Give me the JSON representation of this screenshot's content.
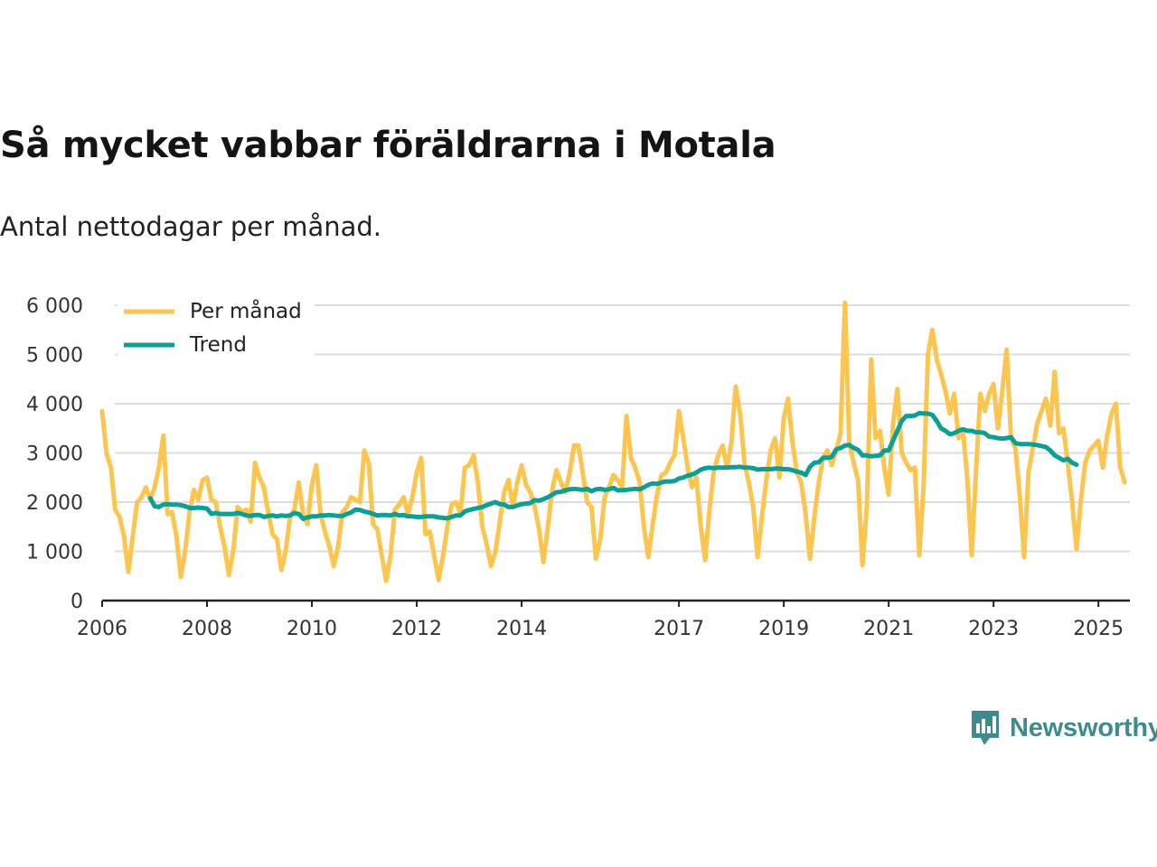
{
  "header": {
    "title": "Så mycket vabbar föräldrarna i Motala",
    "subtitle": "Antal nettodagar per månad."
  },
  "brand": {
    "name": "Newsworthy",
    "color": "#3e8a8f"
  },
  "colors": {
    "monthly": "#fbc54f",
    "trend": "#0f9e93",
    "grid": "#dddddd",
    "axis": "#222222"
  },
  "chart_data": {
    "type": "line",
    "title": "Så mycket vabbar föräldrarna i Motala",
    "subtitle": "Antal nettodagar per månad.",
    "xlabel": "",
    "ylabel": "",
    "ylim": [
      0,
      6000
    ],
    "yticks": [
      0,
      1000,
      2000,
      3000,
      4000,
      5000,
      6000
    ],
    "ytick_labels": [
      "0",
      "1 000",
      "2 000",
      "3 000",
      "4 000",
      "5 000",
      "6 000"
    ],
    "xlim": [
      2006,
      2025.6
    ],
    "xticks": [
      2006,
      2008,
      2010,
      2012,
      2014,
      2017,
      2019,
      2021,
      2023,
      2025
    ],
    "xtick_labels": [
      "2006",
      "2008",
      "2010",
      "2012",
      "2014",
      "2017",
      "2019",
      "2021",
      "2023",
      "2025"
    ],
    "grid": true,
    "legend": {
      "position": "top-left",
      "entries": [
        "Per månad",
        "Trend"
      ]
    },
    "series": [
      {
        "name": "Per månad",
        "color": "#fbc54f",
        "x_start": 2006.0,
        "step": 0.08333,
        "values": [
          3850,
          3000,
          2700,
          1850,
          1700,
          1300,
          580,
          1300,
          2000,
          2100,
          2300,
          2050,
          2300,
          2700,
          3350,
          1750,
          1800,
          1300,
          480,
          1000,
          1800,
          2250,
          2050,
          2450,
          2500,
          2050,
          2000,
          1500,
          1100,
          520,
          1000,
          1900,
          1800,
          1850,
          1600,
          2800,
          2500,
          2300,
          1800,
          1350,
          1250,
          620,
          1000,
          1700,
          1850,
          2400,
          1750,
          1550,
          2350,
          2750,
          1750,
          1400,
          1100,
          700,
          1100,
          1800,
          1900,
          2100,
          2050,
          2000,
          3050,
          2800,
          1550,
          1450,
          900,
          400,
          900,
          1850,
          1950,
          2100,
          1750,
          2100,
          2600,
          2900,
          1350,
          1400,
          900,
          420,
          900,
          1500,
          1950,
          2000,
          1750,
          2700,
          2750,
          2950,
          2400,
          1500,
          1150,
          700,
          1000,
          1600,
          2200,
          2450,
          1900,
          2400,
          2750,
          2350,
          2200,
          1900,
          1450,
          780,
          1500,
          2250,
          2650,
          2400,
          2200,
          2600,
          3150,
          3150,
          2600,
          2000,
          1900,
          850,
          1250,
          2100,
          2300,
          2550,
          2450,
          2300,
          3750,
          2900,
          2700,
          2400,
          1500,
          880,
          1550,
          2150,
          2550,
          2600,
          2800,
          2950,
          3850,
          3300,
          2700,
          2300,
          2500,
          1500,
          820,
          1850,
          2650,
          2950,
          3150,
          2700,
          3200,
          4350,
          3800,
          2800,
          2400,
          1900,
          880,
          1700,
          2450,
          3050,
          3300,
          2500,
          3700,
          4100,
          3200,
          2600,
          2400,
          1750,
          850,
          1700,
          2400,
          2900,
          3050,
          2750,
          3050,
          3400,
          6050,
          3200,
          2800,
          2450,
          720,
          1900,
          4900,
          3300,
          3450,
          2700,
          2150,
          3600,
          4300,
          3000,
          2800,
          2650,
          2700,
          920,
          2350,
          5000,
          5500,
          4900,
          4600,
          4250,
          3800,
          4200,
          3300,
          3450,
          2500,
          920,
          2650,
          4200,
          3850,
          4200,
          4400,
          3500,
          4250,
          5100,
          3300,
          3100,
          2150,
          880,
          2600,
          3100,
          3600,
          3850,
          4100,
          3550,
          4650,
          3400,
          3500,
          2800,
          2000,
          1050,
          2050,
          2800,
          3050,
          3150,
          3250,
          2700,
          3350,
          3800,
          4000,
          2700,
          2400
        ]
      },
      {
        "name": "Trend",
        "color": "#0f9e93",
        "x_start": 2006.9167,
        "step": 0.08333,
        "values": [
          2080,
          1920,
          1900,
          1950,
          1960,
          1950,
          1950,
          1940,
          1920,
          1880,
          1880,
          1890,
          1880,
          1870,
          1760,
          1780,
          1760,
          1760,
          1760,
          1760,
          1780,
          1760,
          1730,
          1720,
          1740,
          1740,
          1700,
          1720,
          1730,
          1710,
          1730,
          1720,
          1730,
          1780,
          1760,
          1660,
          1690,
          1710,
          1710,
          1730,
          1730,
          1740,
          1730,
          1720,
          1720,
          1760,
          1790,
          1850,
          1840,
          1810,
          1790,
          1760,
          1730,
          1740,
          1740,
          1730,
          1760,
          1730,
          1740,
          1710,
          1710,
          1700,
          1700,
          1710,
          1710,
          1710,
          1690,
          1680,
          1670,
          1700,
          1730,
          1730,
          1810,
          1840,
          1860,
          1880,
          1900,
          1940,
          1970,
          2000,
          1960,
          1950,
          1900,
          1900,
          1930,
          1960,
          1970,
          1980,
          2040,
          2030,
          2060,
          2100,
          2150,
          2200,
          2210,
          2240,
          2260,
          2270,
          2260,
          2250,
          2270,
          2220,
          2260,
          2270,
          2250,
          2260,
          2290,
          2240,
          2240,
          2250,
          2260,
          2270,
          2260,
          2300,
          2350,
          2380,
          2370,
          2400,
          2420,
          2420,
          2430,
          2480,
          2500,
          2540,
          2560,
          2600,
          2660,
          2690,
          2700,
          2690,
          2700,
          2700,
          2700,
          2710,
          2710,
          2720,
          2700,
          2700,
          2690,
          2660,
          2670,
          2670,
          2670,
          2680,
          2680,
          2670,
          2670,
          2650,
          2620,
          2600,
          2550,
          2720,
          2800,
          2810,
          2900,
          2900,
          2920,
          3070,
          3100,
          3150,
          3160,
          3100,
          3060,
          2950,
          2950,
          2930,
          2940,
          2950,
          3050,
          3050,
          3250,
          3450,
          3650,
          3750,
          3750,
          3760,
          3810,
          3800,
          3800,
          3770,
          3650,
          3500,
          3450,
          3380,
          3400,
          3450,
          3480,
          3450,
          3450,
          3420,
          3420,
          3400,
          3330,
          3320,
          3300,
          3290,
          3300,
          3320,
          3200,
          3180,
          3180,
          3180,
          3170,
          3160,
          3140,
          3120,
          3050,
          2950,
          2900,
          2850,
          2880,
          2800,
          2760
        ]
      }
    ]
  }
}
